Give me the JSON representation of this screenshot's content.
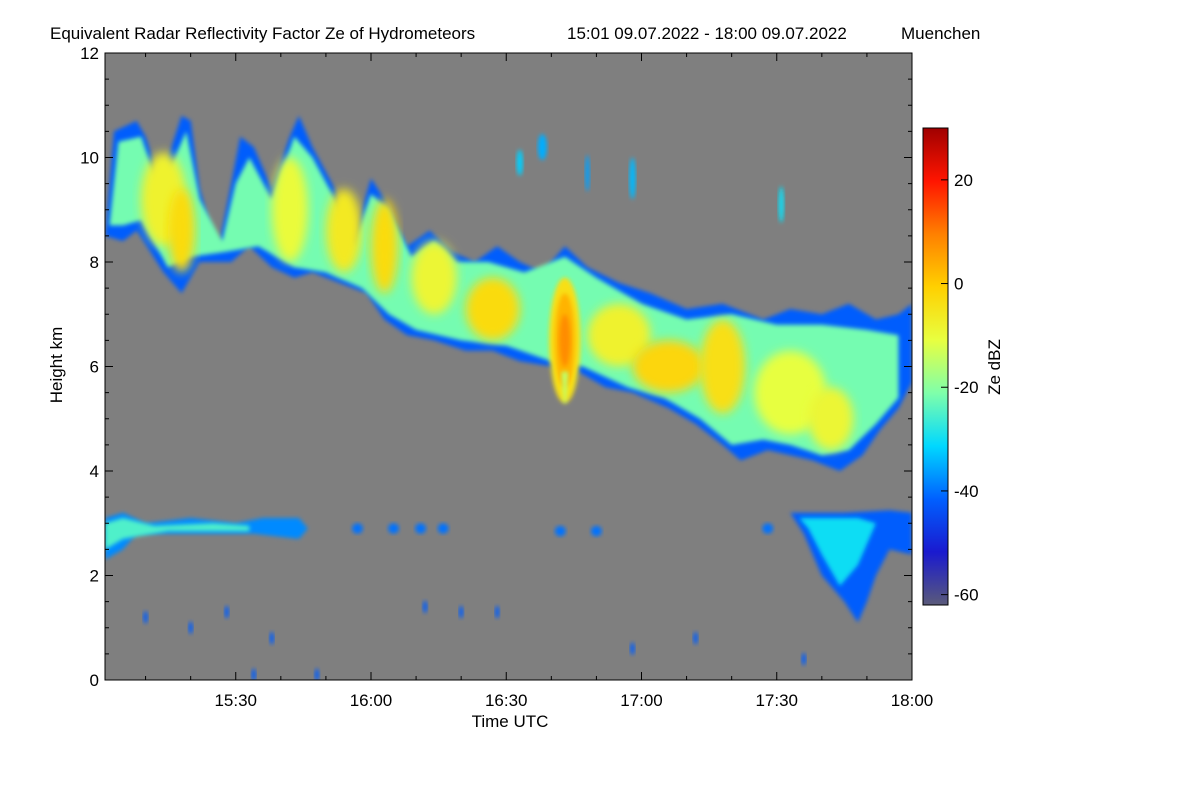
{
  "chart_data": {
    "type": "heatmap",
    "title": "Equivalent Radar Reflectivity Factor Ze of Hydrometeors",
    "time_range": "15:01 09.07.2022 - 18:00 09.07.2022",
    "location": "Muenchen",
    "xlabel": "Time UTC",
    "ylabel": "Height km",
    "xlim": [
      "15:01",
      "18:00"
    ],
    "ylim": [
      0,
      12
    ],
    "x_ticks": [
      "15:30",
      "16:00",
      "16:30",
      "17:00",
      "17:30",
      "18:00"
    ],
    "y_ticks": [
      0,
      2,
      4,
      6,
      8,
      10,
      12
    ],
    "background_color": "#7f7f7f",
    "colorbar": {
      "label": "Ze dBZ",
      "range": [
        -62,
        30
      ],
      "ticks": [
        -60,
        -40,
        -20,
        0,
        20
      ],
      "colormap": [
        "#5a5a7a",
        "#1a1acf",
        "#0060ff",
        "#00d8ff",
        "#7fffaa",
        "#e8ff40",
        "#ffd000",
        "#ff8000",
        "#ff1500",
        "#a00000"
      ]
    },
    "features": [
      {
        "name": "ice cloud layer",
        "time_start": "15:01",
        "time_end": "18:00",
        "top_km": [
          10.5,
          7.0
        ],
        "base_km": [
          7.8,
          4.0
        ],
        "peak_dbz": 5
      },
      {
        "name": "convective core",
        "time": "16:43",
        "height_km": 6.5,
        "peak_dbz": 8
      },
      {
        "name": "low cloud layer",
        "time_start": "15:01",
        "time_end": "15:44",
        "top_km": 3.1,
        "base_km": 2.5,
        "dbz": -25
      },
      {
        "name": "precipitation streaks",
        "time_start": "17:33",
        "time_end": "17:52",
        "top_km": 3.2,
        "base_km": 1.2,
        "dbz": -40
      },
      {
        "name": "cirrus fragments",
        "time_start": "16:30",
        "time_end": "17:35",
        "top_km": 10.5,
        "base_km": 8.8,
        "dbz": -30
      }
    ]
  }
}
